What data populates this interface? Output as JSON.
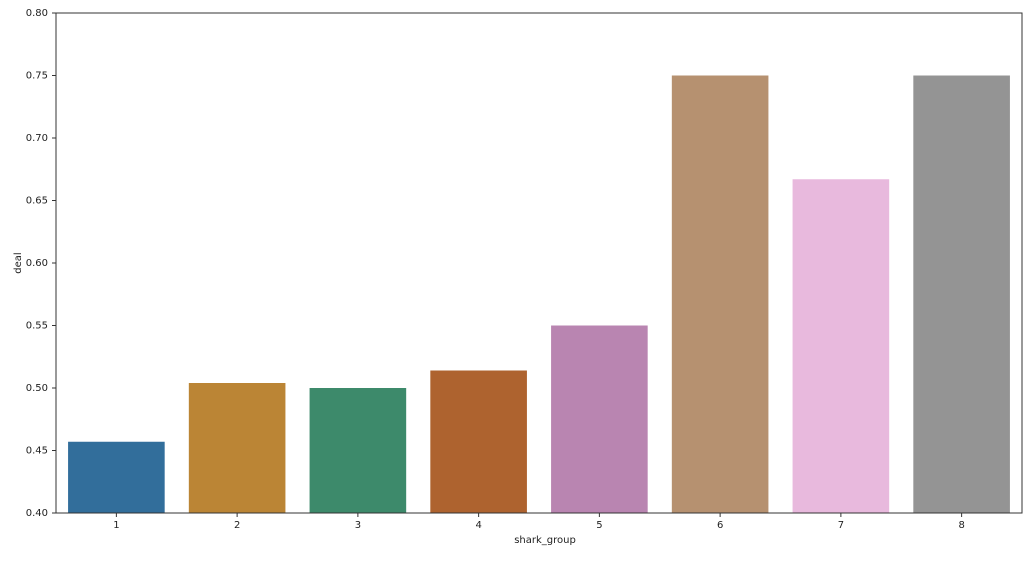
{
  "chart_data": {
    "type": "bar",
    "x_label": "shark_group",
    "y_label": "deal",
    "categories": [
      "1",
      "2",
      "3",
      "4",
      "5",
      "6",
      "7",
      "8"
    ],
    "values": [
      0.457,
      0.504,
      0.5,
      0.514,
      0.55,
      0.75,
      0.667,
      0.75
    ],
    "colors": [
      "#326e9b",
      "#bb8535",
      "#3d8a6b",
      "#ae632f",
      "#b985b1",
      "#b69170",
      "#e8b9dd",
      "#949494"
    ],
    "ylim": [
      0.4,
      0.8
    ],
    "yticks": [
      {
        "value": 0.4,
        "label": "0.40"
      },
      0.45,
      {
        "value": 0.5,
        "label": "0.50"
      },
      0.55,
      {
        "value": 0.6,
        "label": "0.60"
      },
      0.65,
      {
        "value": 0.7,
        "label": "0.70"
      },
      0.75,
      {
        "value": 0.8,
        "label": "0.80"
      }
    ],
    "grid": false
  }
}
